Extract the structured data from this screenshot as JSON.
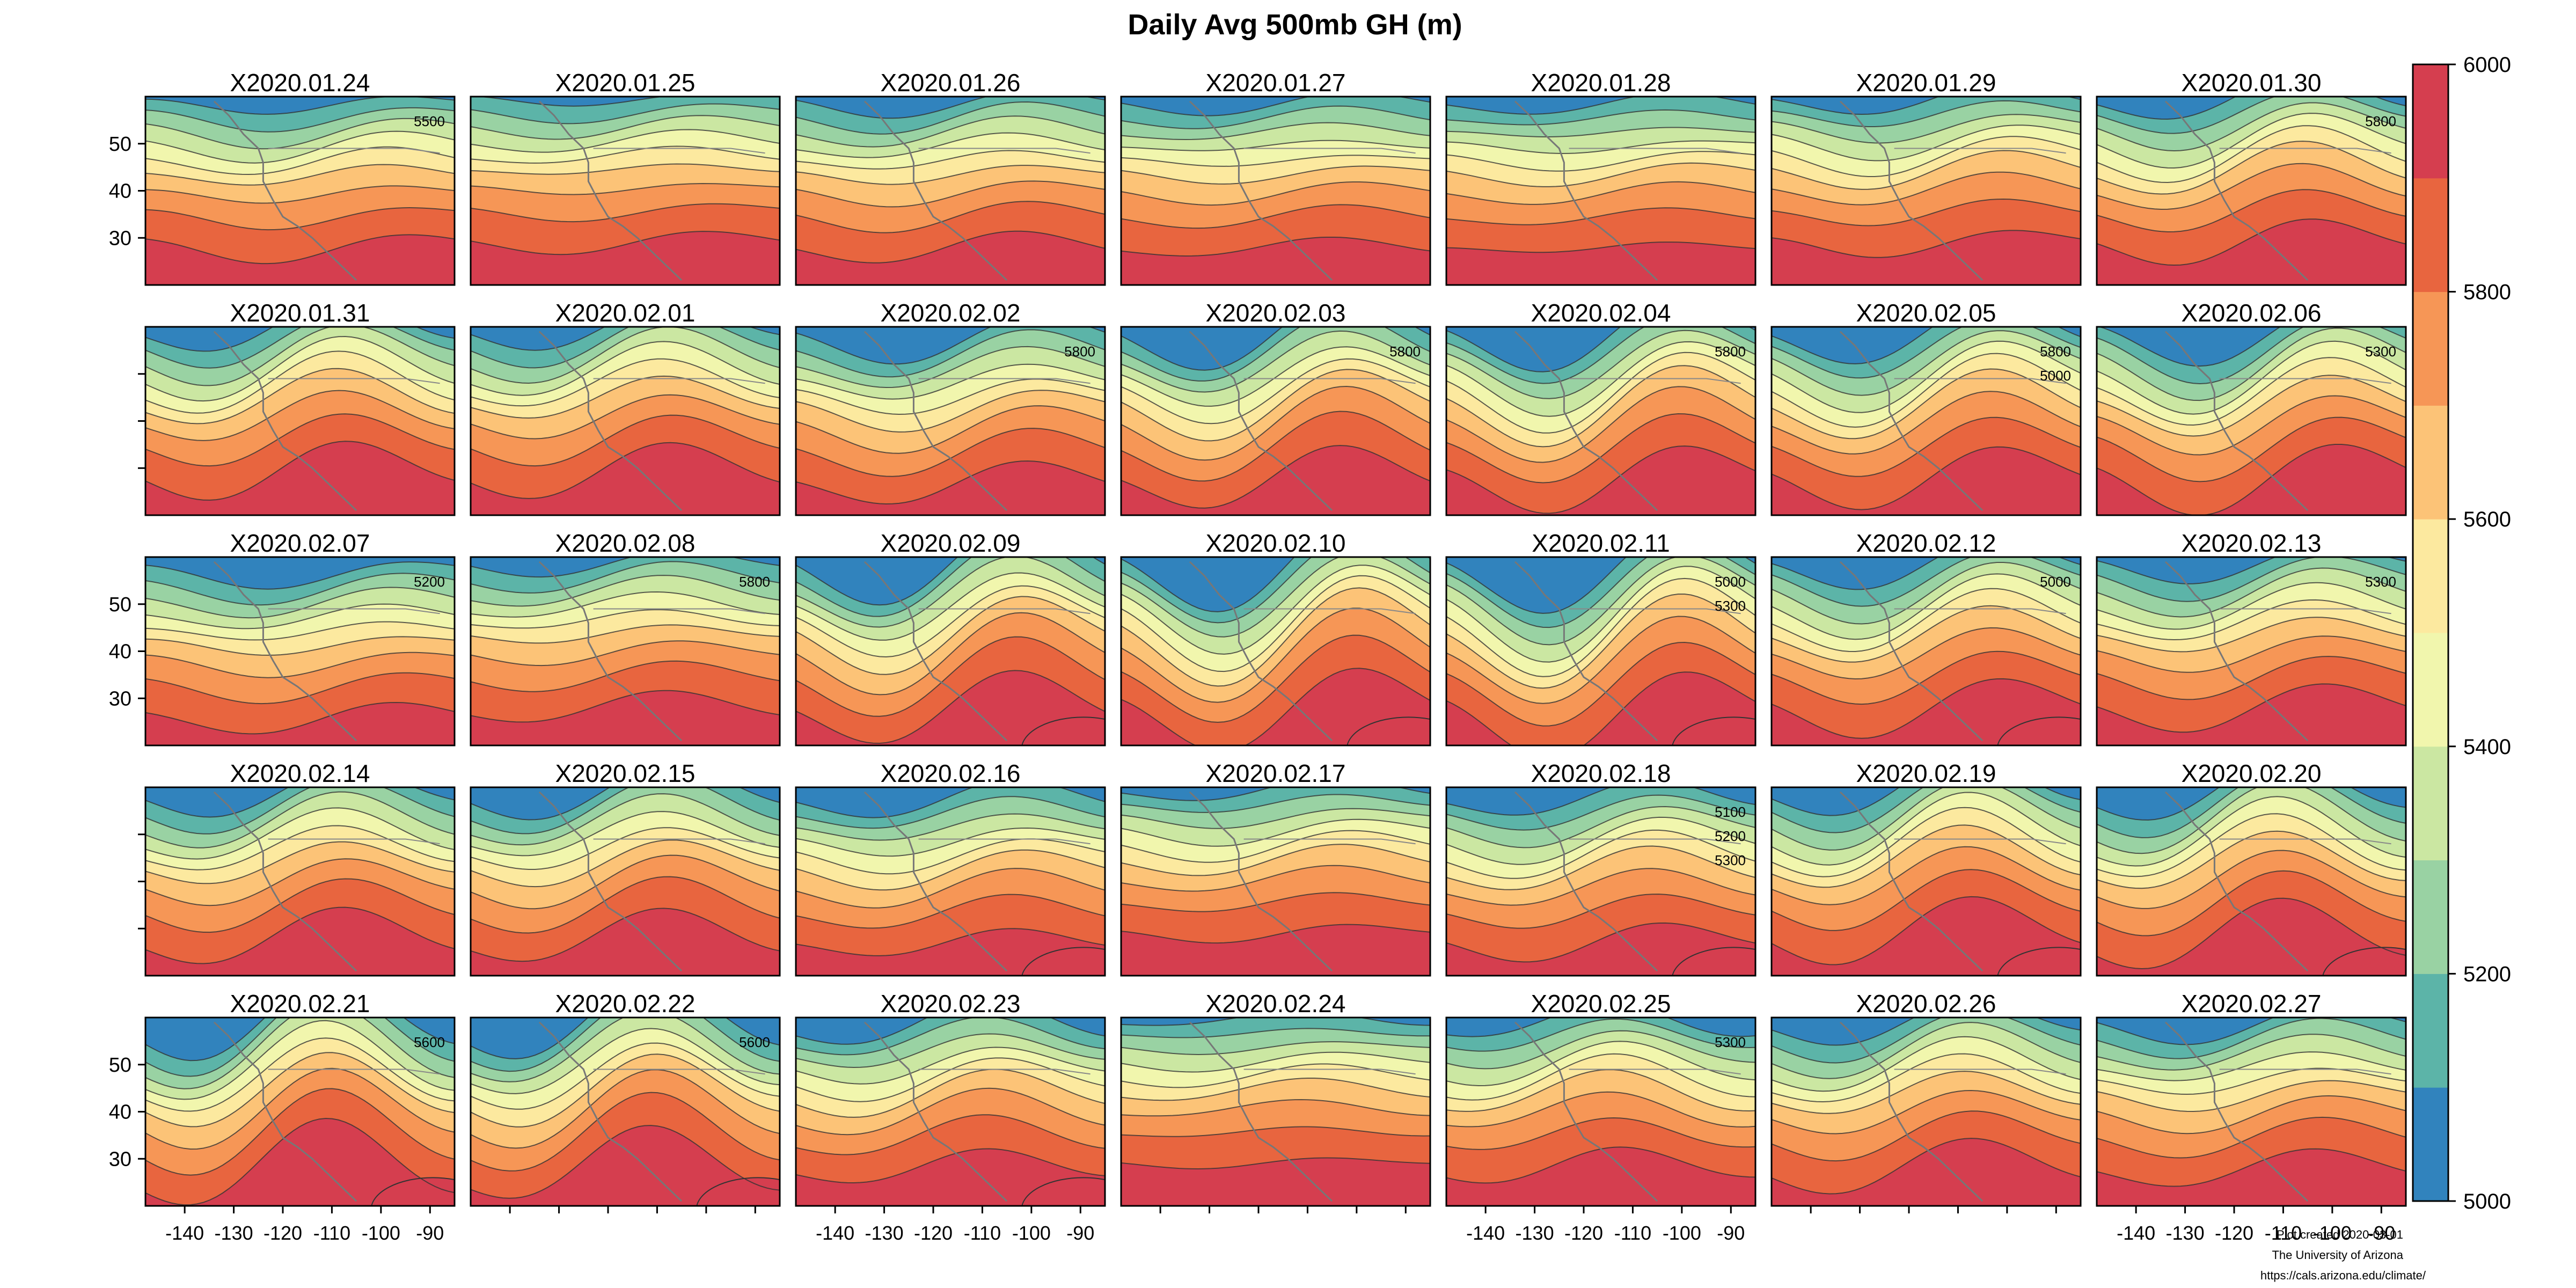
{
  "title": "Daily Avg 500mb GH (m)",
  "panel_titles": [
    "X2020.01.24",
    "X2020.01.25",
    "X2020.01.26",
    "X2020.01.27",
    "X2020.01.28",
    "X2020.01.29",
    "X2020.01.30",
    "X2020.01.31",
    "X2020.02.01",
    "X2020.02.02",
    "X2020.02.03",
    "X2020.02.04",
    "X2020.02.05",
    "X2020.02.06",
    "X2020.02.07",
    "X2020.02.08",
    "X2020.02.09",
    "X2020.02.10",
    "X2020.02.11",
    "X2020.02.12",
    "X2020.02.13",
    "X2020.02.14",
    "X2020.02.15",
    "X2020.02.16",
    "X2020.02.17",
    "X2020.02.18",
    "X2020.02.19",
    "X2020.02.20",
    "X2020.02.21",
    "X2020.02.22",
    "X2020.02.23",
    "X2020.02.24",
    "X2020.02.25",
    "X2020.02.26",
    "X2020.02.27"
  ],
  "colorbar": {
    "min": 5000,
    "max": 6000,
    "tick_labels": [
      "5000",
      "5200",
      "5400",
      "5600",
      "5800",
      "6000"
    ],
    "colors": [
      "#3183bd",
      "#5cb4a8",
      "#99d2a3",
      "#cbe7a2",
      "#f1f6ad",
      "#fce99f",
      "#fcc377",
      "#f69656",
      "#e8653f",
      "#d53e4f"
    ]
  },
  "x_tick_labels": [
    "-140",
    "-130",
    "-120",
    "-110",
    "-100",
    "-90"
  ],
  "y_tick_labels": [
    "50",
    "40",
    "30"
  ],
  "contour_labels": {
    "X2020.01.24": [
      "5500"
    ],
    "X2020.01.30": [
      "5800"
    ],
    "X2020.02.02": [
      "5800"
    ],
    "X2020.02.03": [
      "5800"
    ],
    "X2020.02.04": [
      "5800"
    ],
    "X2020.02.05": [
      "5800",
      "5000"
    ],
    "X2020.02.06": [
      "5300"
    ],
    "X2020.02.07": [
      "5200"
    ],
    "X2020.02.08": [
      "5800"
    ],
    "X2020.02.11": [
      "5000",
      "5300"
    ],
    "X2020.02.12": [
      "5000"
    ],
    "X2020.02.13": [
      "5300"
    ],
    "X2020.02.18": [
      "5100",
      "5200",
      "5300"
    ],
    "X2020.02.21": [
      "5600"
    ],
    "X2020.02.22": [
      "5600"
    ],
    "X2020.02.25": [
      "5300"
    ]
  },
  "footer": {
    "plot_date": "Plot created 2020-03-01",
    "institution": "The University of Arizona",
    "url": "https://cals.arizona.edu/climate/"
  },
  "chart_data": {
    "type": "heatmap",
    "title": "Daily Avg 500mb GH (m)",
    "variable": "500mb geopotential height, daily average (m)",
    "x_ticks": [
      -140,
      -130,
      -120,
      -110,
      -100,
      -90
    ],
    "y_ticks": [
      50,
      40,
      30
    ],
    "color_range": [
      5000,
      6000
    ],
    "color_step": 100,
    "contours": "solid dark grey isolines every 100 m",
    "layout": "small multiples, 5 rows x 7 columns, ordered by date",
    "dates": [
      "X2020.01.24",
      "X2020.01.25",
      "X2020.01.26",
      "X2020.01.27",
      "X2020.01.28",
      "X2020.01.29",
      "X2020.01.30",
      "X2020.01.31",
      "X2020.02.01",
      "X2020.02.02",
      "X2020.02.03",
      "X2020.02.04",
      "X2020.02.05",
      "X2020.02.06",
      "X2020.02.07",
      "X2020.02.08",
      "X2020.02.09",
      "X2020.02.10",
      "X2020.02.11",
      "X2020.02.12",
      "X2020.02.13",
      "X2020.02.14",
      "X2020.02.15",
      "X2020.02.16",
      "X2020.02.17",
      "X2020.02.18",
      "X2020.02.19",
      "X2020.02.20",
      "X2020.02.21",
      "X2020.02.22",
      "X2020.02.23",
      "X2020.02.24",
      "X2020.02.25",
      "X2020.02.26",
      "X2020.02.27"
    ]
  }
}
